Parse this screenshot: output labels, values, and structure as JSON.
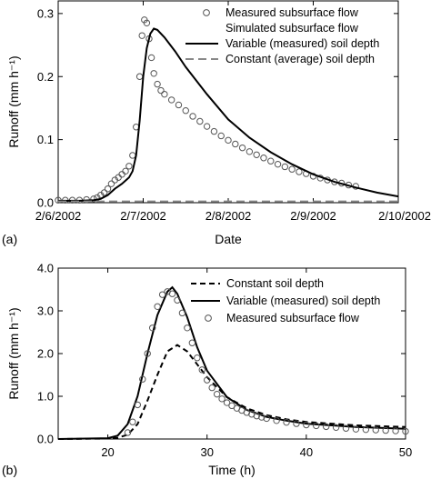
{
  "chart_data": [
    {
      "type": "line",
      "panel_label": "(a)",
      "xlabel": "Date",
      "ylabel": "Runoff (mm h⁻¹)",
      "x_scale": "date",
      "xlim": [
        "2002-02-06",
        "2002-02-10"
      ],
      "ylim": [
        0,
        0.32
      ],
      "x_ticks": [
        "2/6/2002",
        "2/7/2002",
        "2/8/2002",
        "2/9/2002",
        "2/10/2002"
      ],
      "y_ticks": [
        "0.0",
        "0.1",
        "0.2",
        "0.3"
      ],
      "grid": false,
      "legend_position": "top-right",
      "legend": {
        "measured": "Measured subsurface flow",
        "simulated_heading": "Simulated subsurface flow",
        "variable": "Variable (measured) soil depth",
        "constant": "Constant (average) soil depth"
      },
      "series": [
        {
          "name": "Measured subsurface flow",
          "style": "hollow-circle",
          "points": [
            [
              "2002-02-06 00:00",
              0.004
            ],
            [
              "2002-02-06 02:00",
              0.004
            ],
            [
              "2002-02-06 04:00",
              0.004
            ],
            [
              "2002-02-06 06:00",
              0.004
            ],
            [
              "2002-02-06 08:00",
              0.005
            ],
            [
              "2002-02-06 10:00",
              0.006
            ],
            [
              "2002-02-06 11:00",
              0.008
            ],
            [
              "2002-02-06 12:00",
              0.012
            ],
            [
              "2002-02-06 13:00",
              0.016
            ],
            [
              "2002-02-06 14:00",
              0.022
            ],
            [
              "2002-02-06 15:00",
              0.03
            ],
            [
              "2002-02-06 16:00",
              0.036
            ],
            [
              "2002-02-06 17:00",
              0.04
            ],
            [
              "2002-02-06 18:00",
              0.045
            ],
            [
              "2002-02-06 19:00",
              0.05
            ],
            [
              "2002-02-06 20:00",
              0.058
            ],
            [
              "2002-02-06 21:00",
              0.075
            ],
            [
              "2002-02-06 22:00",
              0.12
            ],
            [
              "2002-02-06 23:00",
              0.2
            ],
            [
              "2002-02-06 23:40",
              0.265
            ],
            [
              "2002-02-07 00:20",
              0.29
            ],
            [
              "2002-02-07 01:00",
              0.285
            ],
            [
              "2002-02-07 01:40",
              0.26
            ],
            [
              "2002-02-07 02:20",
              0.23
            ],
            [
              "2002-02-07 03:00",
              0.205
            ],
            [
              "2002-02-07 04:00",
              0.188
            ],
            [
              "2002-02-07 05:00",
              0.178
            ],
            [
              "2002-02-07 06:00",
              0.172
            ],
            [
              "2002-02-07 08:00",
              0.163
            ],
            [
              "2002-02-07 10:00",
              0.155
            ],
            [
              "2002-02-07 12:00",
              0.146
            ],
            [
              "2002-02-07 14:00",
              0.137
            ],
            [
              "2002-02-07 16:00",
              0.129
            ],
            [
              "2002-02-07 18:00",
              0.121
            ],
            [
              "2002-02-07 20:00",
              0.113
            ],
            [
              "2002-02-07 22:00",
              0.106
            ],
            [
              "2002-02-08 00:00",
              0.099
            ],
            [
              "2002-02-08 02:00",
              0.093
            ],
            [
              "2002-02-08 04:00",
              0.087
            ],
            [
              "2002-02-08 06:00",
              0.081
            ],
            [
              "2002-02-08 08:00",
              0.076
            ],
            [
              "2002-02-08 10:00",
              0.071
            ],
            [
              "2002-02-08 12:00",
              0.066
            ],
            [
              "2002-02-08 14:00",
              0.061
            ],
            [
              "2002-02-08 16:00",
              0.057
            ],
            [
              "2002-02-08 18:00",
              0.053
            ],
            [
              "2002-02-08 20:00",
              0.049
            ],
            [
              "2002-02-08 22:00",
              0.046
            ],
            [
              "2002-02-09 00:00",
              0.042
            ],
            [
              "2002-02-09 02:00",
              0.039
            ],
            [
              "2002-02-09 04:00",
              0.036
            ],
            [
              "2002-02-09 06:00",
              0.033
            ],
            [
              "2002-02-09 08:00",
              0.031
            ],
            [
              "2002-02-09 10:00",
              0.028
            ],
            [
              "2002-02-09 12:00",
              0.026
            ]
          ]
        },
        {
          "name": "Variable (measured) soil depth",
          "style": "solid",
          "points": [
            [
              "2002-02-06 00:00",
              0.003
            ],
            [
              "2002-02-06 06:00",
              0.003
            ],
            [
              "2002-02-06 10:00",
              0.004
            ],
            [
              "2002-02-06 12:00",
              0.006
            ],
            [
              "2002-02-06 14:00",
              0.012
            ],
            [
              "2002-02-06 16:00",
              0.022
            ],
            [
              "2002-02-06 18:00",
              0.03
            ],
            [
              "2002-02-06 20:00",
              0.04
            ],
            [
              "2002-02-06 21:00",
              0.05
            ],
            [
              "2002-02-06 22:00",
              0.075
            ],
            [
              "2002-02-06 23:00",
              0.13
            ],
            [
              "2002-02-07 00:00",
              0.2
            ],
            [
              "2002-02-07 01:00",
              0.245
            ],
            [
              "2002-02-07 02:00",
              0.268
            ],
            [
              "2002-02-07 03:00",
              0.276
            ],
            [
              "2002-02-07 04:00",
              0.274
            ],
            [
              "2002-02-07 06:00",
              0.262
            ],
            [
              "2002-02-07 09:00",
              0.24
            ],
            [
              "2002-02-07 12:00",
              0.215
            ],
            [
              "2002-02-07 18:00",
              0.172
            ],
            [
              "2002-02-08 00:00",
              0.132
            ],
            [
              "2002-02-08 06:00",
              0.103
            ],
            [
              "2002-02-08 12:00",
              0.08
            ],
            [
              "2002-02-08 18:00",
              0.061
            ],
            [
              "2002-02-09 00:00",
              0.045
            ],
            [
              "2002-02-09 06:00",
              0.033
            ],
            [
              "2002-02-09 12:00",
              0.024
            ],
            [
              "2002-02-09 18:00",
              0.016
            ],
            [
              "2002-02-10 00:00",
              0.01
            ]
          ]
        },
        {
          "name": "Constant (average) soil depth",
          "style": "dashed-gray",
          "points": [
            [
              "2002-02-06 00:00",
              0.002
            ],
            [
              "2002-02-07 00:00",
              0.002
            ],
            [
              "2002-02-08 00:00",
              0.002
            ],
            [
              "2002-02-09 00:00",
              0.002
            ],
            [
              "2002-02-10 00:00",
              0.002
            ]
          ]
        }
      ]
    },
    {
      "type": "line",
      "panel_label": "(b)",
      "xlabel": "Time (h)",
      "ylabel": "Runoff (mm h⁻¹)",
      "xlim": [
        15,
        50
      ],
      "ylim": [
        0,
        4
      ],
      "x_ticks": [
        "20",
        "30",
        "40",
        "50"
      ],
      "y_ticks": [
        "0.0",
        "1.0",
        "2.0",
        "3.0",
        "4.0"
      ],
      "grid": false,
      "legend_position": "top-right",
      "legend": {
        "constant": "Constant soil depth",
        "variable": "Variable (measured) soil depth",
        "measured": "Measured subsurface flow"
      },
      "series": [
        {
          "name": "Constant soil depth",
          "style": "dashed",
          "points": [
            [
              15,
              0.0
            ],
            [
              20,
              0.01
            ],
            [
              21,
              0.03
            ],
            [
              22,
              0.1
            ],
            [
              23,
              0.35
            ],
            [
              24,
              0.9
            ],
            [
              25,
              1.5
            ],
            [
              26,
              2.05
            ],
            [
              27,
              2.2
            ],
            [
              28,
              2.05
            ],
            [
              29,
              1.75
            ],
            [
              30,
              1.45
            ],
            [
              32,
              0.98
            ],
            [
              34,
              0.72
            ],
            [
              36,
              0.56
            ],
            [
              38,
              0.46
            ],
            [
              40,
              0.4
            ],
            [
              45,
              0.32
            ],
            [
              50,
              0.28
            ]
          ]
        },
        {
          "name": "Variable (measured) soil depth",
          "style": "solid",
          "points": [
            [
              15,
              0.0
            ],
            [
              20,
              0.02
            ],
            [
              21,
              0.08
            ],
            [
              22,
              0.35
            ],
            [
              23,
              1.0
            ],
            [
              24,
              2.0
            ],
            [
              25,
              2.9
            ],
            [
              26,
              3.45
            ],
            [
              26.5,
              3.55
            ],
            [
              27,
              3.4
            ],
            [
              28,
              2.85
            ],
            [
              29,
              2.15
            ],
            [
              30,
              1.6
            ],
            [
              32,
              0.98
            ],
            [
              34,
              0.68
            ],
            [
              36,
              0.52
            ],
            [
              38,
              0.43
            ],
            [
              40,
              0.36
            ],
            [
              45,
              0.28
            ],
            [
              50,
              0.24
            ]
          ]
        },
        {
          "name": "Measured subsurface flow",
          "style": "hollow-circle",
          "points": [
            [
              22,
              0.15
            ],
            [
              22.5,
              0.4
            ],
            [
              23,
              0.8
            ],
            [
              23.5,
              1.4
            ],
            [
              24,
              2.0
            ],
            [
              24.5,
              2.6
            ],
            [
              25,
              3.1
            ],
            [
              25.5,
              3.38
            ],
            [
              26,
              3.45
            ],
            [
              26.5,
              3.4
            ],
            [
              27,
              3.25
            ],
            [
              27.5,
              2.95
            ],
            [
              28,
              2.6
            ],
            [
              28.5,
              2.25
            ],
            [
              29,
              1.9
            ],
            [
              29.5,
              1.62
            ],
            [
              30,
              1.38
            ],
            [
              30.5,
              1.2
            ],
            [
              31,
              1.05
            ],
            [
              31.5,
              0.94
            ],
            [
              32,
              0.85
            ],
            [
              32.5,
              0.78
            ],
            [
              33,
              0.72
            ],
            [
              33.5,
              0.67
            ],
            [
              34,
              0.62
            ],
            [
              34.5,
              0.58
            ],
            [
              35,
              0.54
            ],
            [
              35.5,
              0.51
            ],
            [
              36,
              0.48
            ],
            [
              37,
              0.43
            ],
            [
              38,
              0.39
            ],
            [
              39,
              0.36
            ],
            [
              40,
              0.33
            ],
            [
              41,
              0.31
            ],
            [
              42,
              0.29
            ],
            [
              43,
              0.27
            ],
            [
              44,
              0.25
            ],
            [
              45,
              0.23
            ],
            [
              46,
              0.22
            ],
            [
              47,
              0.21
            ],
            [
              48,
              0.2
            ],
            [
              49,
              0.19
            ],
            [
              50,
              0.18
            ]
          ]
        }
      ]
    }
  ]
}
